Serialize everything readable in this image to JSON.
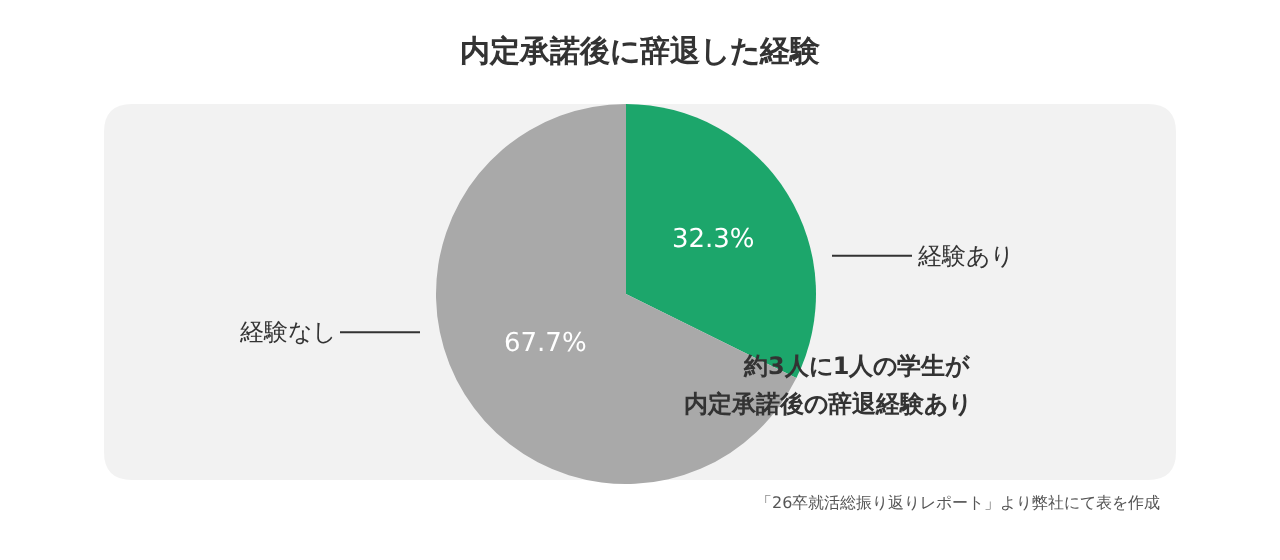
{
  "chart_data": {
    "type": "pie",
    "title": "内定承諾後に辞退した経験",
    "categories": [
      "経験あり",
      "経験なし"
    ],
    "values": [
      32.3,
      67.7
    ],
    "colors": [
      "#1ca66b",
      "#a9a9a9"
    ],
    "value_labels": [
      "32.3%",
      "67.7%"
    ],
    "legend": false,
    "annotations": [
      "約3人に1人の学生が",
      "内定承諾後の辞退経験あり",
      "「26卒就活総振り返りレポート」より弊社にて表を作成"
    ]
  }
}
